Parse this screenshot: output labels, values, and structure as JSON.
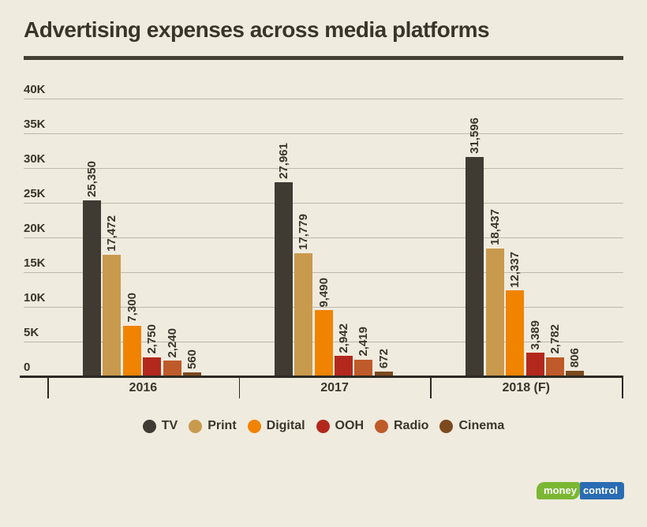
{
  "chart_data": {
    "type": "bar",
    "title": "Advertising expenses across media platforms",
    "categories": [
      "2016",
      "2017",
      "2018 (F)"
    ],
    "series": [
      {
        "name": "TV",
        "color": "#3f3a32",
        "values": [
          25350,
          27961,
          31596
        ]
      },
      {
        "name": "Print",
        "color": "#c89a4d",
        "values": [
          17472,
          17779,
          18437
        ]
      },
      {
        "name": "Digital",
        "color": "#f08300",
        "values": [
          7300,
          9490,
          12337
        ]
      },
      {
        "name": "OOH",
        "color": "#b3281c",
        "values": [
          2750,
          2942,
          3389
        ]
      },
      {
        "name": "Radio",
        "color": "#bf5a2a",
        "values": [
          2240,
          2419,
          2782
        ]
      },
      {
        "name": "Cinema",
        "color": "#7d4a1f",
        "values": [
          560,
          672,
          806
        ]
      }
    ],
    "y_ticks": [
      {
        "label": "40K",
        "value": 40000
      },
      {
        "label": "35K",
        "value": 35000
      },
      {
        "label": "30K",
        "value": 30000
      },
      {
        "label": "25K",
        "value": 25000
      },
      {
        "label": "20K",
        "value": 20000
      },
      {
        "label": "15K",
        "value": 15000
      },
      {
        "label": "10K",
        "value": 10000
      },
      {
        "label": "5K",
        "value": 5000
      },
      {
        "label": "0",
        "value": 0
      }
    ],
    "ylim": [
      0,
      40000
    ],
    "grid": true,
    "legend_position": "bottom",
    "value_label_rotation": -90
  },
  "footer": {
    "logo_part1": "money",
    "logo_part2": "control"
  },
  "colors": {
    "background": "#f0ebdf",
    "text": "#3a352b",
    "gridline": "#bdb8aa",
    "baseline": "#2d2923",
    "title_rule": "#433f33",
    "logo_green": "#7cb734",
    "logo_blue": "#2a6cb4"
  }
}
